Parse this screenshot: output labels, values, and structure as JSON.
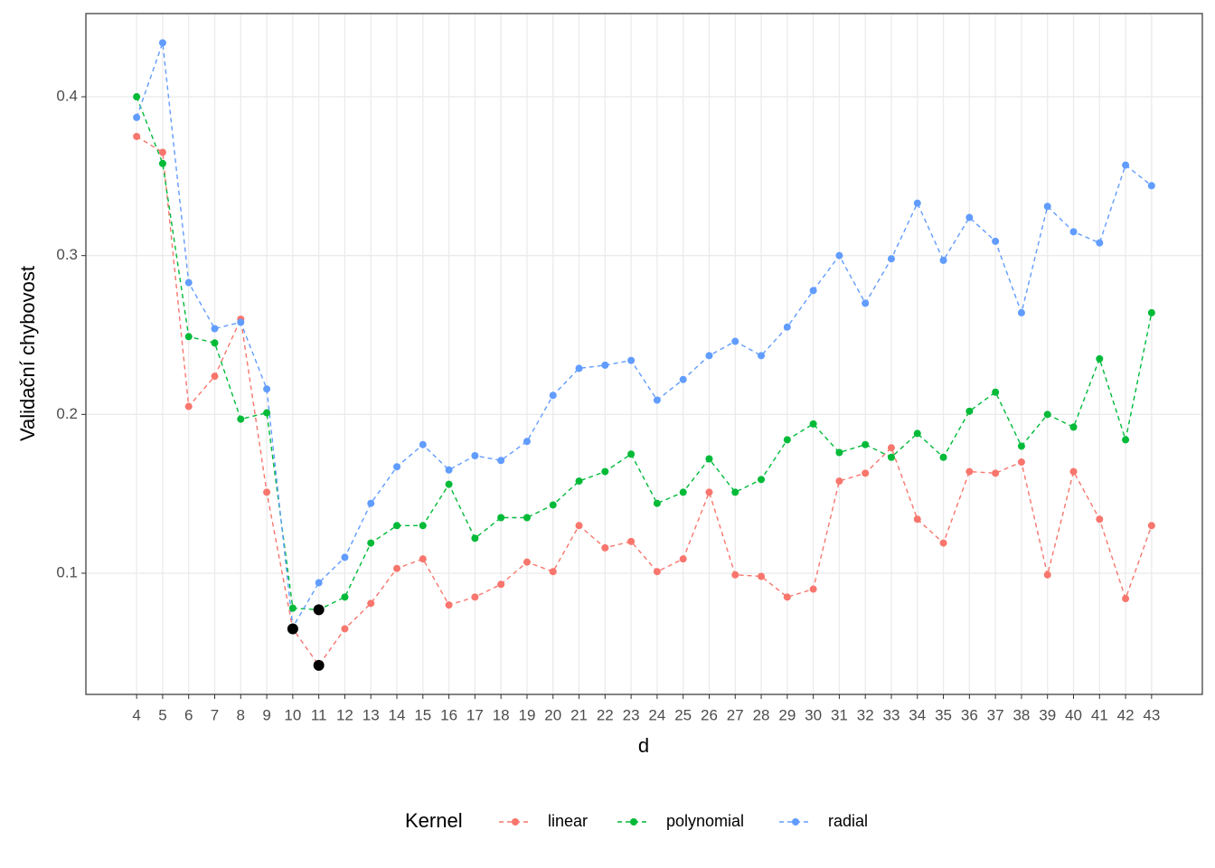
{
  "chart_data": {
    "type": "line",
    "x_label": "d",
    "y_label": "Validační chybovost",
    "x": [
      4,
      5,
      6,
      7,
      8,
      9,
      10,
      11,
      12,
      13,
      14,
      15,
      16,
      17,
      18,
      19,
      20,
      21,
      22,
      23,
      24,
      25,
      26,
      27,
      28,
      29,
      30,
      31,
      32,
      33,
      34,
      35,
      36,
      37,
      38,
      39,
      40,
      41,
      42,
      43
    ],
    "xlim": [
      2.05,
      44.95
    ],
    "xticks": [
      4,
      5,
      6,
      7,
      8,
      9,
      10,
      11,
      12,
      13,
      14,
      15,
      16,
      17,
      18,
      19,
      20,
      21,
      22,
      23,
      24,
      25,
      26,
      27,
      28,
      29,
      30,
      31,
      32,
      33,
      34,
      35,
      36,
      37,
      38,
      39,
      40,
      41,
      42,
      43
    ],
    "ylim": [
      0.0237,
      0.4524
    ],
    "yticks": [
      0.1,
      0.2,
      0.3,
      0.4
    ],
    "grid": true,
    "legend_title": "Kernel",
    "legend_position": "bottom",
    "series": [
      {
        "name": "linear",
        "color": "#F8766D",
        "values": [
          0.375,
          0.365,
          0.205,
          0.224,
          0.26,
          0.151,
          0.065,
          0.042,
          0.065,
          0.081,
          0.103,
          0.109,
          0.08,
          0.085,
          0.093,
          0.107,
          0.101,
          0.13,
          0.116,
          0.12,
          0.101,
          0.109,
          0.151,
          0.099,
          0.098,
          0.085,
          0.09,
          0.158,
          0.163,
          0.179,
          0.134,
          0.119,
          0.164,
          0.163,
          0.17,
          0.099,
          0.164,
          0.134,
          0.084,
          0.13
        ]
      },
      {
        "name": "polynomial",
        "color": "#00BA38",
        "values": [
          0.4,
          0.358,
          0.249,
          0.245,
          0.197,
          0.201,
          0.078,
          0.077,
          0.085,
          0.119,
          0.13,
          0.13,
          0.156,
          0.122,
          0.135,
          0.135,
          0.143,
          0.158,
          0.164,
          0.175,
          0.144,
          0.151,
          0.172,
          0.151,
          0.159,
          0.184,
          0.194,
          0.176,
          0.181,
          0.173,
          0.188,
          0.173,
          0.202,
          0.214,
          0.18,
          0.2,
          0.192,
          0.235,
          0.184,
          0.264
        ]
      },
      {
        "name": "radial",
        "color": "#619CFF",
        "values": [
          0.387,
          0.434,
          0.283,
          0.254,
          0.258,
          0.216,
          0.066,
          0.094,
          0.11,
          0.144,
          0.167,
          0.181,
          0.165,
          0.174,
          0.171,
          0.183,
          0.212,
          0.229,
          0.231,
          0.234,
          0.209,
          0.222,
          0.237,
          0.246,
          0.237,
          0.255,
          0.278,
          0.3,
          0.27,
          0.298,
          0.333,
          0.297,
          0.324,
          0.309,
          0.264,
          0.331,
          0.315,
          0.308,
          0.357,
          0.344
        ]
      }
    ],
    "highlights": {
      "color": "#000000",
      "x": [
        10,
        11,
        11
      ],
      "values": [
        0.065,
        0.077,
        0.042
      ]
    }
  }
}
